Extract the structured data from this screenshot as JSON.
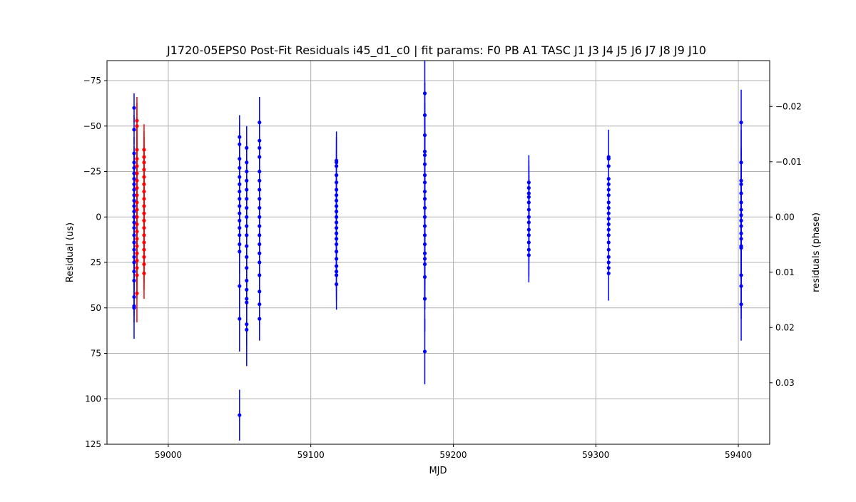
{
  "chart_data": {
    "type": "scatter",
    "title": "J1720-05EPS0 Post-Fit Residuals i45_d1_c0 | fit params: F0 PB A1 TASC J1 J3 J4 J5 J6 J7 J8 J9 J10",
    "xlabel": "MJD",
    "ylabel": "Residual (us)",
    "y2label": "residuals (phase)",
    "xlim": [
      58957,
      59422
    ],
    "ylim": [
      125,
      -86
    ],
    "y_inverted": true,
    "grid": true,
    "x_ticks": [
      59000,
      59100,
      59200,
      59300,
      59400
    ],
    "x_tick_labels": [
      "59000",
      "59100",
      "59200",
      "59300",
      "59400"
    ],
    "y_ticks": [
      -75,
      -50,
      -25,
      0,
      25,
      50,
      75,
      100,
      125
    ],
    "y_tick_labels": [
      "−75",
      "−50",
      "−25",
      "0",
      "25",
      "50",
      "75",
      "100",
      "125"
    ],
    "y2_ticks": [
      -0.02,
      -0.01,
      0.0,
      0.01,
      0.02,
      0.03
    ],
    "y2_tick_labels": [
      "−0.02",
      "−0.01",
      "0.00",
      "0.01",
      "0.02",
      "0.03"
    ],
    "y2_per_y1": 0.000329,
    "colors": {
      "blue": "#0000ff",
      "red": "#ff0000",
      "grid": "#b0b0b0"
    },
    "series": [
      {
        "color": "#0000ff",
        "groups": [
          {
            "mjd": 58976,
            "residuals": [
              -60,
              -48,
              -35,
              -30,
              -27,
              -24,
              -21,
              -18,
              -15,
              -12,
              -9,
              -6,
              -3,
              0,
              3,
              6,
              10,
              14,
              18,
              22,
              25,
              30,
              35,
              44,
              49,
              50
            ],
            "errors": [
              8,
              8,
              9,
              9,
              9,
              10,
              10,
              10,
              10,
              10,
              10,
              10,
              10,
              10,
              10,
              10,
              10,
              10,
              10,
              10,
              10,
              10,
              10,
              10,
              18,
              8
            ]
          },
          {
            "mjd": 59050,
            "residuals": [
              -44,
              -40,
              -32,
              -27,
              -22,
              -18,
              -14,
              -10,
              -6,
              -2,
              2,
              6,
              10,
              15,
              19,
              38,
              56,
              109
            ],
            "errors": [
              12,
              12,
              12,
              12,
              12,
              12,
              12,
              12,
              12,
              12,
              12,
              12,
              12,
              12,
              12,
              12,
              18,
              14
            ]
          },
          {
            "mjd": 59055,
            "residuals": [
              -38,
              -30,
              -25,
              -20,
              -15,
              -10,
              -5,
              0,
              5,
              10,
              16,
              22,
              28,
              35,
              40,
              45,
              47,
              59,
              62
            ],
            "errors": [
              12,
              12,
              12,
              12,
              12,
              12,
              12,
              12,
              12,
              12,
              12,
              12,
              12,
              12,
              12,
              12,
              12,
              12,
              20
            ]
          },
          {
            "mjd": 59064,
            "residuals": [
              -52,
              -42,
              -38,
              -33,
              -25,
              -20,
              -15,
              -10,
              -5,
              0,
              5,
              10,
              15,
              20,
              25,
              32,
              41,
              48,
              56
            ],
            "errors": [
              14,
              12,
              12,
              12,
              12,
              12,
              12,
              12,
              12,
              12,
              12,
              12,
              12,
              12,
              12,
              12,
              12,
              12,
              12
            ]
          },
          {
            "mjd": 59118,
            "residuals": [
              -31,
              -30,
              -28,
              -23,
              -19,
              -15,
              -12,
              -9,
              -6,
              -3,
              0,
              3,
              6,
              9,
              12,
              15,
              19,
              23,
              27,
              30,
              32,
              37
            ],
            "errors": [
              16,
              14,
              14,
              14,
              14,
              14,
              14,
              14,
              14,
              14,
              14,
              14,
              14,
              14,
              14,
              14,
              14,
              14,
              14,
              14,
              14,
              14
            ]
          },
          {
            "mjd": 59180,
            "residuals": [
              -68,
              -56,
              -45,
              -36,
              -34,
              -29,
              -23,
              -19,
              -14,
              -10,
              -5,
              0,
              5,
              10,
              15,
              20,
              23,
              26,
              33,
              45,
              74
            ],
            "errors": [
              18,
              18,
              18,
              18,
              18,
              18,
              18,
              18,
              18,
              18,
              18,
              18,
              18,
              18,
              18,
              18,
              18,
              18,
              18,
              18,
              18
            ]
          },
          {
            "mjd": 59253,
            "residuals": [
              -19,
              -16,
              -13,
              -11,
              -8,
              -4,
              0,
              3,
              7,
              10,
              14,
              18,
              21
            ],
            "errors": [
              15,
              15,
              15,
              15,
              15,
              15,
              15,
              15,
              15,
              15,
              15,
              15,
              15
            ]
          },
          {
            "mjd": 59309,
            "residuals": [
              -33,
              -32,
              -28,
              -21,
              -18,
              -15,
              -12,
              -8,
              -5,
              -2,
              1,
              4,
              7,
              10,
              14,
              18,
              22,
              25,
              28,
              31
            ],
            "errors": [
              15,
              15,
              15,
              15,
              15,
              15,
              15,
              15,
              15,
              15,
              15,
              15,
              15,
              15,
              15,
              15,
              15,
              15,
              15,
              15
            ]
          },
          {
            "mjd": 59402,
            "residuals": [
              -52,
              -30,
              -20,
              -18,
              -13,
              -8,
              -4,
              -1,
              2,
              5,
              9,
              12,
              16,
              17,
              32,
              38,
              48
            ],
            "errors": [
              18,
              18,
              18,
              18,
              18,
              18,
              18,
              18,
              18,
              18,
              18,
              18,
              18,
              18,
              18,
              18,
              20
            ]
          }
        ]
      },
      {
        "color": "#ff0000",
        "groups": [
          {
            "mjd": 58978,
            "residuals": [
              -53,
              -50,
              -37,
              -32,
              -28,
              -24,
              -20,
              -16,
              -12,
              -8,
              -4,
              0,
              4,
              8,
              12,
              16,
              20,
              24,
              28,
              32,
              42
            ],
            "errors": [
              13,
              13,
              13,
              13,
              13,
              13,
              13,
              13,
              13,
              13,
              13,
              13,
              13,
              13,
              13,
              13,
              13,
              13,
              13,
              13,
              16
            ]
          },
          {
            "mjd": 58983,
            "residuals": [
              -37,
              -33,
              -30,
              -26,
              -22,
              -18,
              -14,
              -10,
              -6,
              -2,
              2,
              6,
              10,
              14,
              18,
              22,
              26,
              31
            ],
            "errors": [
              14,
              14,
              14,
              14,
              14,
              14,
              14,
              14,
              14,
              14,
              14,
              14,
              14,
              14,
              14,
              14,
              14,
              14
            ]
          }
        ]
      }
    ]
  }
}
